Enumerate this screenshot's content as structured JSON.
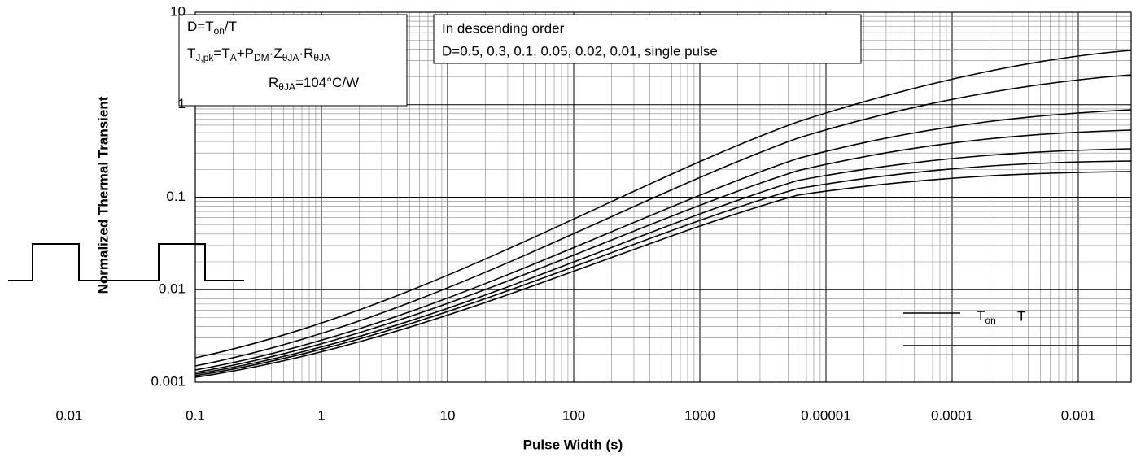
{
  "y_axis": {
    "label": "Normalized Thermal Transient",
    "tick_labels": [
      "10",
      "1",
      "0.1",
      "0.01",
      "0.001"
    ]
  },
  "x_axis": {
    "label": "Pulse Width (s)",
    "tick_labels": [
      "0.01",
      "0.1",
      "1",
      "10",
      "100",
      "1000",
      "0.00001",
      "0.0001",
      "0.001"
    ]
  },
  "notes": {
    "duty": [
      "D=T",
      "on",
      "/T"
    ],
    "junction": [
      "T",
      "J,pk",
      "=T",
      "A",
      "+P",
      "DM",
      "·Z",
      "θJA",
      "·R",
      "θJA"
    ],
    "resistance": [
      "R",
      "θJA",
      "=104°C/W"
    ],
    "order_title": "In descending order",
    "order_list": "D=0.5, 0.3, 0.1, 0.05, 0.02, 0.01, single pulse"
  },
  "pulse": {
    "on": [
      "T",
      "on"
    ],
    "period": "T"
  }
}
